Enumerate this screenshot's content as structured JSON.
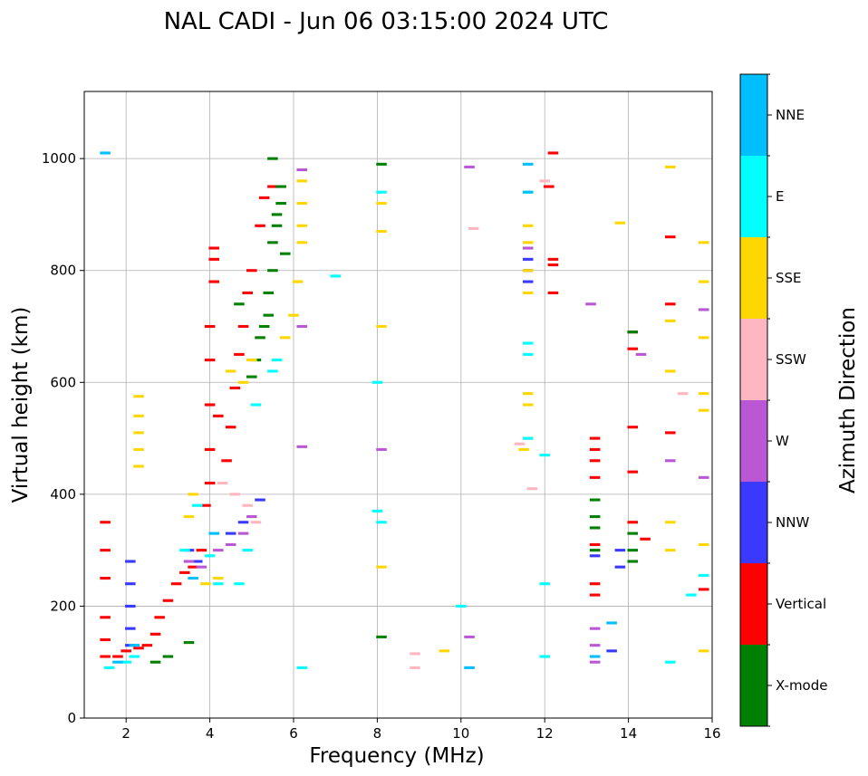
{
  "chart_data": {
    "type": "scatter",
    "title": "NAL CADI - Jun 06 03:15:00 2024 UTC",
    "xlabel": "Frequency (MHz)",
    "ylabel": "Virtual height (km)",
    "xlim": [
      1,
      16
    ],
    "ylim": [
      0,
      1120
    ],
    "xticks": [
      2,
      4,
      6,
      8,
      10,
      12,
      14,
      16
    ],
    "yticks": [
      0,
      200,
      400,
      600,
      800,
      1000
    ],
    "grid": true,
    "colorbar": {
      "label": "Azimuth Direction",
      "categories": [
        {
          "name": "X-mode",
          "color": "#008000"
        },
        {
          "name": "Vertical",
          "color": "#ff0000"
        },
        {
          "name": "NNW",
          "color": "#3a3aff"
        },
        {
          "name": "W",
          "color": "#b957d4"
        },
        {
          "name": "SSW",
          "color": "#ffb6c1"
        },
        {
          "name": "SSE",
          "color": "#ffd700"
        },
        {
          "name": "E",
          "color": "#00ffff"
        },
        {
          "name": "NNE",
          "color": "#00bfff"
        }
      ]
    },
    "series": [
      {
        "name": "Vertical",
        "color": "#ff0000",
        "points": [
          [
            1.5,
            110
          ],
          [
            1.5,
            140
          ],
          [
            1.5,
            180
          ],
          [
            1.5,
            250
          ],
          [
            1.5,
            300
          ],
          [
            1.5,
            350
          ],
          [
            1.8,
            110
          ],
          [
            2.0,
            120
          ],
          [
            2.3,
            125
          ],
          [
            2.5,
            130
          ],
          [
            2.7,
            150
          ],
          [
            2.8,
            180
          ],
          [
            3.0,
            210
          ],
          [
            3.2,
            240
          ],
          [
            3.4,
            260
          ],
          [
            3.6,
            270
          ],
          [
            3.8,
            300
          ],
          [
            3.9,
            380
          ],
          [
            4.0,
            420
          ],
          [
            4.0,
            480
          ],
          [
            4.0,
            560
          ],
          [
            4.0,
            640
          ],
          [
            4.0,
            700
          ],
          [
            4.1,
            780
          ],
          [
            4.1,
            820
          ],
          [
            4.1,
            840
          ],
          [
            4.2,
            540
          ],
          [
            4.4,
            460
          ],
          [
            4.5,
            520
          ],
          [
            4.6,
            590
          ],
          [
            4.7,
            650
          ],
          [
            4.8,
            700
          ],
          [
            4.9,
            760
          ],
          [
            5.0,
            800
          ],
          [
            5.2,
            880
          ],
          [
            5.3,
            930
          ],
          [
            5.5,
            950
          ],
          [
            12.1,
            950
          ],
          [
            12.2,
            820
          ],
          [
            12.2,
            810
          ],
          [
            12.2,
            1010
          ],
          [
            12.2,
            760
          ],
          [
            13.2,
            430
          ],
          [
            13.2,
            460
          ],
          [
            13.2,
            480
          ],
          [
            13.2,
            500
          ],
          [
            13.2,
            310
          ],
          [
            13.2,
            240
          ],
          [
            13.2,
            220
          ],
          [
            14.1,
            690
          ],
          [
            14.1,
            660
          ],
          [
            14.1,
            520
          ],
          [
            14.1,
            440
          ],
          [
            14.1,
            350
          ],
          [
            14.4,
            320
          ],
          [
            15.0,
            860
          ],
          [
            15.0,
            740
          ],
          [
            15.0,
            510
          ],
          [
            15.8,
            230
          ]
        ]
      },
      {
        "name": "X-mode",
        "color": "#008000",
        "points": [
          [
            2.7,
            100
          ],
          [
            3.0,
            110
          ],
          [
            3.5,
            135
          ],
          [
            5.0,
            610
          ],
          [
            5.1,
            640
          ],
          [
            5.2,
            680
          ],
          [
            5.3,
            700
          ],
          [
            5.4,
            720
          ],
          [
            5.4,
            760
          ],
          [
            5.5,
            800
          ],
          [
            5.5,
            850
          ],
          [
            5.6,
            880
          ],
          [
            5.6,
            900
          ],
          [
            5.7,
            920
          ],
          [
            5.7,
            950
          ],
          [
            5.5,
            1000
          ],
          [
            4.7,
            740
          ],
          [
            5.8,
            830
          ],
          [
            8.1,
            145
          ],
          [
            8.1,
            990
          ],
          [
            13.2,
            390
          ],
          [
            13.2,
            360
          ],
          [
            13.2,
            340
          ],
          [
            13.2,
            300
          ],
          [
            14.1,
            330
          ],
          [
            14.1,
            300
          ],
          [
            14.1,
            280
          ],
          [
            14.1,
            690
          ]
        ]
      },
      {
        "name": "NNW",
        "color": "#3a3aff",
        "points": [
          [
            2.1,
            130
          ],
          [
            2.1,
            160
          ],
          [
            2.1,
            200
          ],
          [
            2.1,
            240
          ],
          [
            2.1,
            280
          ],
          [
            3.5,
            300
          ],
          [
            3.7,
            280
          ],
          [
            4.5,
            330
          ],
          [
            4.8,
            350
          ],
          [
            5.2,
            390
          ],
          [
            11.6,
            800
          ],
          [
            11.6,
            820
          ],
          [
            11.6,
            780
          ],
          [
            13.2,
            290
          ],
          [
            13.8,
            300
          ],
          [
            13.8,
            270
          ],
          [
            13.6,
            120
          ]
        ]
      },
      {
        "name": "W",
        "color": "#b957d4",
        "points": [
          [
            3.5,
            280
          ],
          [
            3.8,
            270
          ],
          [
            4.2,
            300
          ],
          [
            4.5,
            310
          ],
          [
            4.8,
            330
          ],
          [
            5.0,
            360
          ],
          [
            6.2,
            980
          ],
          [
            6.2,
            700
          ],
          [
            6.2,
            485
          ],
          [
            8.1,
            480
          ],
          [
            10.2,
            985
          ],
          [
            10.2,
            145
          ],
          [
            11.6,
            840
          ],
          [
            11.6,
            500
          ],
          [
            13.1,
            740
          ],
          [
            13.2,
            160
          ],
          [
            13.2,
            130
          ],
          [
            13.2,
            100
          ],
          [
            14.3,
            650
          ],
          [
            15.0,
            460
          ],
          [
            15.8,
            730
          ],
          [
            15.8,
            430
          ]
        ]
      },
      {
        "name": "SSW",
        "color": "#ffb6c1",
        "points": [
          [
            4.3,
            420
          ],
          [
            4.6,
            400
          ],
          [
            4.9,
            380
          ],
          [
            5.1,
            350
          ],
          [
            8.9,
            115
          ],
          [
            8.9,
            90
          ],
          [
            10.3,
            875
          ],
          [
            11.4,
            490
          ],
          [
            11.7,
            410
          ],
          [
            12.0,
            960
          ],
          [
            15.3,
            580
          ]
        ]
      },
      {
        "name": "SSE",
        "color": "#ffd700",
        "points": [
          [
            2.3,
            450
          ],
          [
            2.3,
            480
          ],
          [
            2.3,
            510
          ],
          [
            2.3,
            540
          ],
          [
            2.3,
            575
          ],
          [
            3.5,
            360
          ],
          [
            3.6,
            400
          ],
          [
            3.9,
            240
          ],
          [
            4.2,
            250
          ],
          [
            4.5,
            620
          ],
          [
            4.8,
            600
          ],
          [
            5.0,
            640
          ],
          [
            5.8,
            680
          ],
          [
            6.0,
            720
          ],
          [
            6.1,
            780
          ],
          [
            6.2,
            850
          ],
          [
            6.2,
            880
          ],
          [
            6.2,
            920
          ],
          [
            6.2,
            960
          ],
          [
            8.1,
            700
          ],
          [
            8.1,
            920
          ],
          [
            8.1,
            870
          ],
          [
            8.1,
            270
          ],
          [
            9.6,
            120
          ],
          [
            11.5,
            480
          ],
          [
            11.6,
            560
          ],
          [
            11.6,
            580
          ],
          [
            11.6,
            760
          ],
          [
            11.6,
            800
          ],
          [
            11.6,
            850
          ],
          [
            11.6,
            880
          ],
          [
            13.8,
            885
          ],
          [
            15.0,
            985
          ],
          [
            15.0,
            710
          ],
          [
            15.0,
            620
          ],
          [
            15.0,
            350
          ],
          [
            15.0,
            300
          ],
          [
            15.8,
            850
          ],
          [
            15.8,
            780
          ],
          [
            15.8,
            680
          ],
          [
            15.8,
            580
          ],
          [
            15.8,
            550
          ],
          [
            15.8,
            310
          ],
          [
            15.8,
            120
          ]
        ]
      },
      {
        "name": "E",
        "color": "#00ffff",
        "points": [
          [
            1.6,
            90
          ],
          [
            2.0,
            100
          ],
          [
            2.2,
            110
          ],
          [
            3.4,
            300
          ],
          [
            3.7,
            380
          ],
          [
            4.0,
            290
          ],
          [
            4.2,
            240
          ],
          [
            4.7,
            240
          ],
          [
            4.9,
            300
          ],
          [
            5.1,
            560
          ],
          [
            5.5,
            620
          ],
          [
            5.6,
            640
          ],
          [
            6.2,
            90
          ],
          [
            7.0,
            790
          ],
          [
            8.0,
            370
          ],
          [
            8.0,
            600
          ],
          [
            8.1,
            350
          ],
          [
            8.1,
            940
          ],
          [
            10.0,
            200
          ],
          [
            11.6,
            650
          ],
          [
            11.6,
            670
          ],
          [
            11.6,
            500
          ],
          [
            11.6,
            940
          ],
          [
            12.0,
            470
          ],
          [
            12.0,
            240
          ],
          [
            12.0,
            110
          ],
          [
            15.0,
            100
          ],
          [
            15.5,
            220
          ],
          [
            15.8,
            255
          ]
        ]
      },
      {
        "name": "NNE",
        "color": "#00bfff",
        "points": [
          [
            1.5,
            1010
          ],
          [
            1.8,
            100
          ],
          [
            2.2,
            130
          ],
          [
            3.6,
            250
          ],
          [
            4.1,
            330
          ],
          [
            10.2,
            90
          ],
          [
            11.6,
            940
          ],
          [
            11.6,
            990
          ],
          [
            13.2,
            110
          ],
          [
            13.6,
            170
          ]
        ]
      }
    ]
  }
}
